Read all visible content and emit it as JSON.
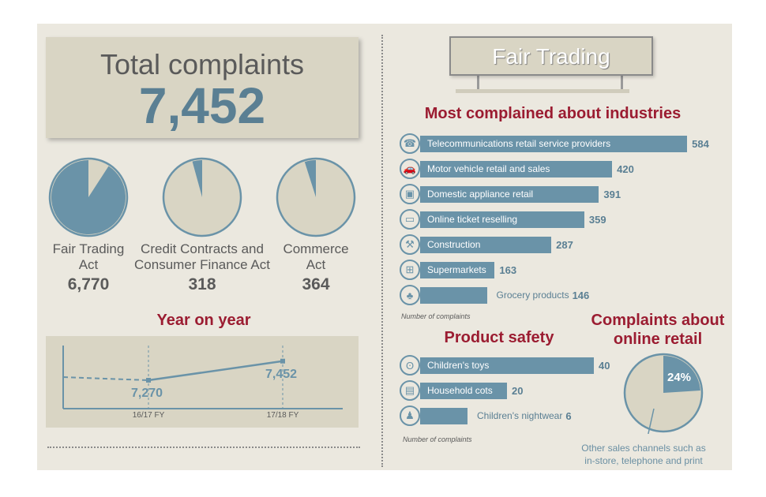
{
  "total": {
    "title": "Total complaints",
    "value": "7,452"
  },
  "acts": [
    {
      "name": "Fair Trading Act",
      "line1": "Fair Trading",
      "line2": "Act",
      "value": "6,770",
      "share": 0.9085
    },
    {
      "name": "Credit Contracts and Consumer Finance Act",
      "line1": "Credit Contracts and",
      "line2": "Consumer Finance Act",
      "value": "318",
      "share": 0.0427
    },
    {
      "name": "Commerce Act",
      "line1": "Commerce",
      "line2": "Act",
      "value": "364",
      "share": 0.0488
    }
  ],
  "year_on_year": {
    "title": "Year on year",
    "points": [
      {
        "period": "16/17 FY",
        "value": 7270,
        "label": "7,270"
      },
      {
        "period": "17/18 FY",
        "value": 7452,
        "label": "7,452"
      }
    ]
  },
  "fair_trading": {
    "title": "Fair Trading"
  },
  "industries": {
    "title": "Most complained about industries",
    "note": "Number of complaints",
    "items": [
      {
        "label": "Telecommunications retail service providers",
        "value": 584,
        "icon": "phone-icon"
      },
      {
        "label": "Motor vehicle retail and sales",
        "value": 420,
        "icon": "car-icon"
      },
      {
        "label": "Domestic appliance retail",
        "value": 391,
        "icon": "appliance-icon"
      },
      {
        "label": "Online ticket reselling",
        "value": 359,
        "icon": "computer-icon"
      },
      {
        "label": "Construction",
        "value": 287,
        "icon": "hammer-icon"
      },
      {
        "label": "Supermarkets",
        "value": 163,
        "icon": "basket-icon"
      },
      {
        "label": "Grocery products",
        "value": 146,
        "icon": "groceries-icon"
      }
    ]
  },
  "product_safety": {
    "title": "Product safety",
    "note": "Number of complaints",
    "items": [
      {
        "label": "Children's toys",
        "value": 40,
        "icon": "teddy-bear-icon"
      },
      {
        "label": "Household cots",
        "value": 20,
        "icon": "cot-icon"
      },
      {
        "label": "Children's nightwear",
        "value": 6,
        "icon": "nightwear-icon"
      }
    ]
  },
  "online_retail": {
    "title_line1": "Complaints about",
    "title_line2": "online retail",
    "percent": 24,
    "percent_label": "24%",
    "caption_line1": "Other sales channels such as",
    "caption_line2": "in-store, telephone and print"
  },
  "colors": {
    "accent": "#6a93a8",
    "heading": "#9b1c31",
    "pie_bg": "#d9d5c4",
    "panel": "#ebe8df"
  },
  "chart_data": [
    {
      "type": "pie",
      "title": "Total complaints",
      "slices": [
        {
          "label": "Fair Trading Act",
          "value": 6770
        },
        {
          "label": "Credit Contracts and Consumer Finance Act",
          "value": 318
        },
        {
          "label": "Commerce Act",
          "value": 364
        }
      ],
      "total": 7452
    },
    {
      "type": "line",
      "title": "Year on year",
      "x": [
        "16/17 FY",
        "17/18 FY"
      ],
      "series": [
        {
          "values": [
            7270,
            7452
          ]
        }
      ]
    },
    {
      "type": "bar",
      "title": "Most complained about industries",
      "categories": [
        "Telecommunications retail service providers",
        "Motor vehicle retail and sales",
        "Domestic appliance retail",
        "Online ticket reselling",
        "Construction",
        "Supermarkets",
        "Grocery products"
      ],
      "values": [
        584,
        420,
        391,
        359,
        287,
        163,
        146
      ],
      "xlabel": "Number of complaints"
    },
    {
      "type": "bar",
      "title": "Product safety",
      "categories": [
        "Children's toys",
        "Household cots",
        "Children's nightwear"
      ],
      "values": [
        40,
        20,
        6
      ],
      "xlabel": "Number of complaints"
    },
    {
      "type": "pie",
      "title": "Complaints about online retail",
      "slices": [
        {
          "label": "Online retail",
          "value": 24
        },
        {
          "label": "Other sales channels such as in-store, telephone and print",
          "value": 76
        }
      ]
    }
  ]
}
